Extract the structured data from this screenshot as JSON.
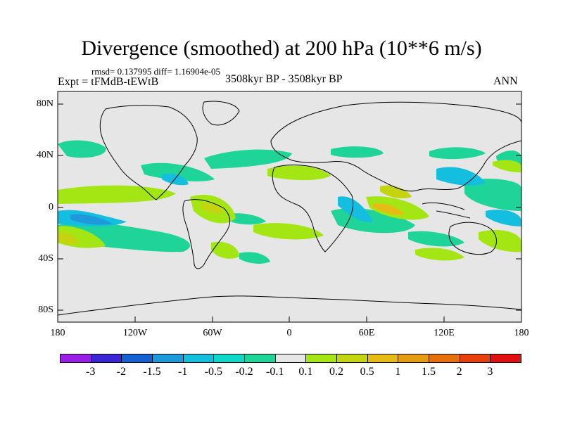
{
  "title": "Divergence (smoothed) at 200 hPa (10**6 m/s)",
  "stats": "rmsd= 0.137995 diff= 1.16904e-05",
  "experiment": "Expt = tFMdB-tEWtB",
  "period": "3508kyr BP - 3508kyr BP",
  "season": "ANN",
  "lat_labels": [
    "80N",
    "40N",
    "0",
    "40S",
    "80S"
  ],
  "lon_labels": [
    "180",
    "120W",
    "60W",
    "0",
    "60E",
    "120E",
    "180"
  ],
  "colorbar": {
    "labels": [
      "-3",
      "-2",
      "-1.5",
      "-1",
      "-0.5",
      "-0.2",
      "-0.1",
      "0.1",
      "0.2",
      "0.5",
      "1",
      "1.5",
      "2",
      "3"
    ],
    "colors": [
      "#9a1ee6",
      "#3a26d4",
      "#1461d2",
      "#1e99dc",
      "#14bede",
      "#10d8c8",
      "#1ed498",
      "#e6e6e6",
      "#a4e614",
      "#c4d40e",
      "#e6bc14",
      "#e69c12",
      "#e6700e",
      "#e6400c",
      "#e01010"
    ]
  },
  "palette": {
    "bg": "#e6e6e6",
    "coast": "#000000"
  }
}
